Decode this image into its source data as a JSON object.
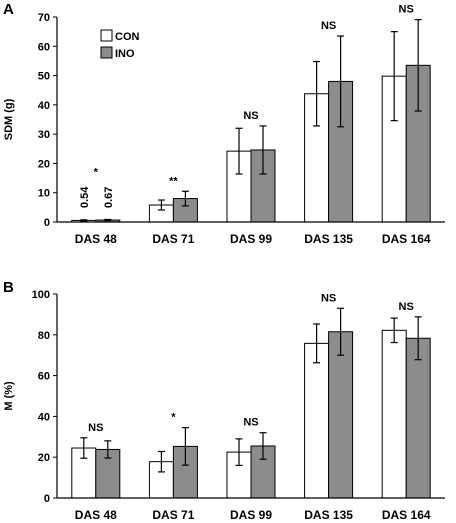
{
  "chart_data": [
    {
      "type": "bar",
      "panel_label": "A",
      "categories": [
        "DAS 48",
        "DAS 71",
        "DAS 99",
        "DAS 135",
        "DAS 164"
      ],
      "ylabel": "SDM (g)",
      "ylim": [
        0,
        70
      ],
      "yticks": [
        0,
        10,
        20,
        30,
        40,
        50,
        60,
        70
      ],
      "legend": {
        "placement": "top-left",
        "entries": [
          "CON",
          "INO"
        ]
      },
      "series": [
        {
          "name": "CON",
          "color": "#ffffff",
          "values": [
            0.54,
            5.8,
            24.2,
            43.8,
            49.8
          ],
          "errors": [
            0.2,
            1.7,
            7.8,
            11.0,
            15.2
          ]
        },
        {
          "name": "INO",
          "color": "#8c8c8c",
          "values": [
            0.67,
            8.0,
            24.6,
            48.0,
            53.5
          ],
          "errors": [
            0.2,
            2.5,
            8.2,
            15.5,
            15.6
          ]
        }
      ],
      "annotations": [
        "*",
        "**",
        "NS",
        "NS",
        "NS"
      ],
      "value_labels": [
        "0.54",
        "0.67"
      ]
    },
    {
      "type": "bar",
      "panel_label": "B",
      "categories": [
        "DAS 48",
        "DAS 71",
        "DAS 99",
        "DAS 135",
        "DAS 164"
      ],
      "ylabel": "M (%)",
      "ylim": [
        0,
        100
      ],
      "yticks": [
        0,
        20,
        40,
        60,
        80,
        100
      ],
      "series": [
        {
          "name": "CON",
          "color": "#ffffff",
          "values": [
            24.5,
            17.8,
            22.5,
            75.8,
            82.2
          ],
          "errors": [
            5.0,
            5.0,
            6.5,
            9.5,
            6.0
          ]
        },
        {
          "name": "INO",
          "color": "#8c8c8c",
          "values": [
            23.8,
            25.3,
            25.5,
            81.5,
            78.3
          ],
          "errors": [
            4.2,
            9.2,
            6.5,
            11.5,
            10.5
          ]
        }
      ],
      "annotations": [
        "NS",
        "*",
        "NS",
        "NS",
        "NS"
      ]
    }
  ]
}
